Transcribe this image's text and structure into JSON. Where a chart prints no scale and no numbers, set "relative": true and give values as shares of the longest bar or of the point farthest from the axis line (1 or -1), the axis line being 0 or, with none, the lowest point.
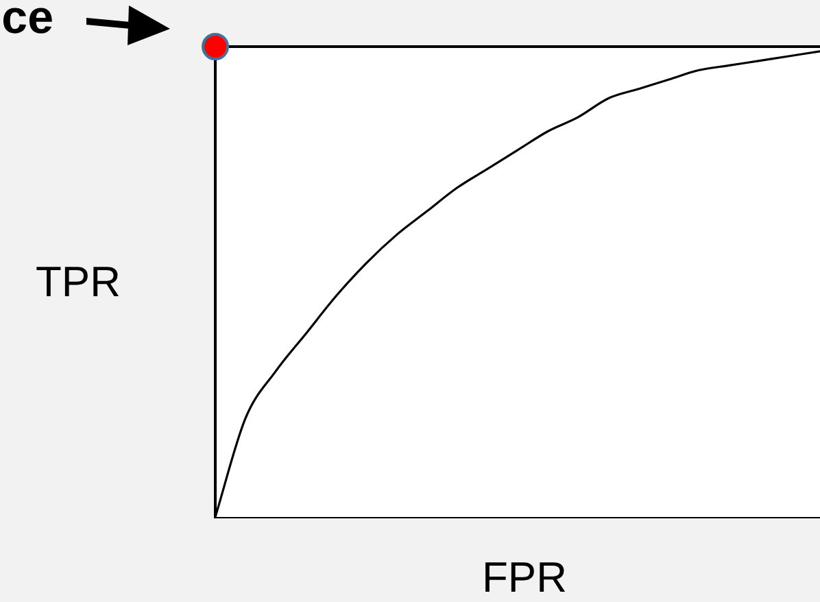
{
  "chart_data": {
    "type": "line",
    "relative": true,
    "xlabel": "FPR",
    "ylabel": "TPR",
    "annotations": [
      "ce"
    ],
    "categories": [
      null,
      null,
      null,
      null,
      null,
      null,
      null,
      null,
      null,
      null,
      null,
      null,
      null,
      null,
      null,
      null,
      null,
      null,
      null,
      null,
      null
    ],
    "series": [
      {
        "color": "#000000",
        "marker": "none",
        "values": [
          0,
          0.21,
          0.31,
          0.39,
          0.47,
          0.54,
          0.6,
          0.65,
          0.7,
          0.74,
          0.78,
          0.82,
          0.85,
          0.89,
          0.91,
          0.93,
          0.95,
          0.96,
          0.97,
          0.98,
          0.99
        ]
      },
      {
        "color": "#ff0000",
        "marker": "circle",
        "values": [
          1,
          null,
          null,
          null,
          null,
          null,
          null,
          null,
          null,
          null,
          null,
          null,
          null,
          null,
          null,
          null,
          null,
          null,
          null,
          null,
          null
        ]
      }
    ]
  }
}
